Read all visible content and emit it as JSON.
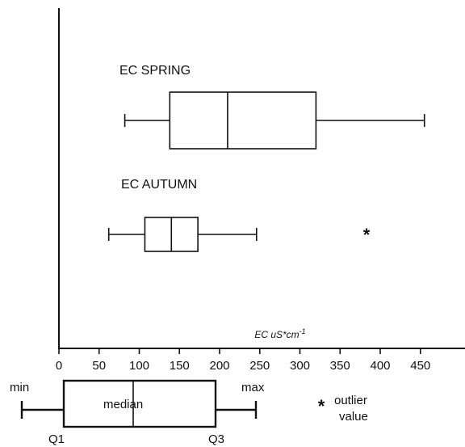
{
  "chart_data": {
    "type": "boxplot",
    "orientation": "horizontal",
    "xlabel": "EC uS*cm",
    "xlabel_exponent": "-1",
    "xlim": [
      0,
      490
    ],
    "xticks": [
      0,
      50,
      100,
      150,
      200,
      250,
      300,
      350,
      400,
      450
    ],
    "series": [
      {
        "name": "EC SPRING",
        "min": 82,
        "q1": 138,
        "median": 210,
        "q3": 320,
        "max": 455,
        "outliers": []
      },
      {
        "name": "EC AUTUMN",
        "min": 62,
        "q1": 107,
        "median": 140,
        "q3": 173,
        "max": 246,
        "outliers": [
          383
        ]
      }
    ],
    "legend": {
      "min": "min",
      "max": "max",
      "median": "median",
      "q1": "Q1",
      "q3": "Q3",
      "outlier_symbol": "*",
      "outlier_line1": "outlier",
      "outlier_line2": "value"
    }
  }
}
